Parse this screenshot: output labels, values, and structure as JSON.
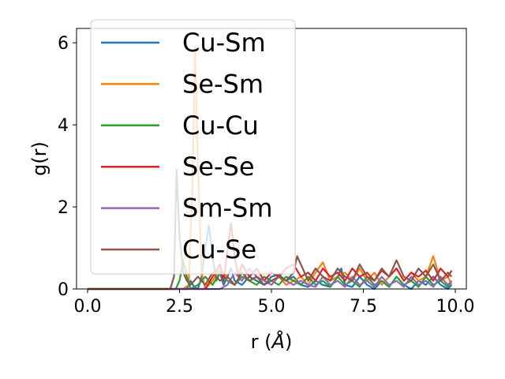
{
  "chart_data": {
    "type": "line",
    "xlabel": "r (",
    "xlabel_unit": "Å",
    "xlabel_close": ")",
    "ylabel": "g(r)",
    "xlim": [
      -0.3,
      10.3
    ],
    "ylim": [
      0,
      6.35
    ],
    "xticks": [
      0.0,
      2.5,
      5.0,
      7.5,
      10.0
    ],
    "xtick_labels": [
      "0.0",
      "2.5",
      "5.0",
      "7.5",
      "10.0"
    ],
    "yticks": [
      0,
      2,
      4,
      6
    ],
    "ytick_labels": [
      "0",
      "2",
      "4",
      "6"
    ],
    "grid": false,
    "legend_position": "upper-left",
    "series": [
      {
        "name": "Cu-Sm",
        "color": "#1f77b4",
        "points": [
          [
            0,
            0
          ],
          [
            2.3,
            0
          ],
          [
            2.7,
            0
          ],
          [
            2.8,
            0.2
          ],
          [
            2.9,
            0.05
          ],
          [
            3.0,
            0
          ],
          [
            3.1,
            0.3
          ],
          [
            3.2,
            1.0
          ],
          [
            3.3,
            1.55
          ],
          [
            3.4,
            0.8
          ],
          [
            3.5,
            0.2
          ],
          [
            3.6,
            0.4
          ],
          [
            3.7,
            0.1
          ],
          [
            3.8,
            0.3
          ],
          [
            3.9,
            0.5
          ],
          [
            4.0,
            0.2
          ],
          [
            4.2,
            0.1
          ],
          [
            4.4,
            0.3
          ],
          [
            4.6,
            0.2
          ],
          [
            4.8,
            0.1
          ],
          [
            5.0,
            0.3
          ],
          [
            5.2,
            0.35
          ],
          [
            5.4,
            0.2
          ],
          [
            5.6,
            0.3
          ],
          [
            5.8,
            0.1
          ],
          [
            6.0,
            0.05
          ],
          [
            6.2,
            0.2
          ],
          [
            6.4,
            0.1
          ],
          [
            6.6,
            0.05
          ],
          [
            6.8,
            0.3
          ],
          [
            6.9,
            0.5
          ],
          [
            7.0,
            0.1
          ],
          [
            7.2,
            0.05
          ],
          [
            7.4,
            0.3
          ],
          [
            7.6,
            0.1
          ],
          [
            7.8,
            0.0
          ],
          [
            8.0,
            0.2
          ],
          [
            8.2,
            0.05
          ],
          [
            8.4,
            0.3
          ],
          [
            8.6,
            0.1
          ],
          [
            8.8,
            0.0
          ],
          [
            9.0,
            0.2
          ],
          [
            9.2,
            0.1
          ],
          [
            9.4,
            0.3
          ],
          [
            9.6,
            0.1
          ],
          [
            9.8,
            0.0
          ],
          [
            9.9,
            0.1
          ]
        ]
      },
      {
        "name": "Se-Sm",
        "color": "#ff7f0e",
        "points": [
          [
            0,
            0
          ],
          [
            2.6,
            0
          ],
          [
            2.75,
            0.1
          ],
          [
            2.85,
            2.5
          ],
          [
            2.92,
            5.9
          ],
          [
            3.0,
            3.0
          ],
          [
            3.1,
            0.4
          ],
          [
            3.2,
            0
          ],
          [
            3.4,
            0.2
          ],
          [
            3.6,
            0.5
          ],
          [
            3.8,
            0.3
          ],
          [
            4.0,
            0.1
          ],
          [
            4.2,
            0.4
          ],
          [
            4.4,
            0.2
          ],
          [
            4.6,
            0.3
          ],
          [
            4.8,
            0.1
          ],
          [
            5.0,
            0.2
          ],
          [
            5.2,
            0.3
          ],
          [
            5.4,
            0.1
          ],
          [
            5.6,
            0.2
          ],
          [
            5.8,
            0.3
          ],
          [
            6.0,
            0.1
          ],
          [
            6.2,
            0.4
          ],
          [
            6.4,
            0.65
          ],
          [
            6.6,
            0.2
          ],
          [
            6.8,
            0.3
          ],
          [
            7.0,
            0.4
          ],
          [
            7.2,
            0.2
          ],
          [
            7.4,
            0.5
          ],
          [
            7.6,
            0.2
          ],
          [
            7.8,
            0.4
          ],
          [
            8.0,
            0.1
          ],
          [
            8.2,
            0.3
          ],
          [
            8.4,
            0.5
          ],
          [
            8.6,
            0.2
          ],
          [
            8.8,
            0.4
          ],
          [
            9.0,
            0.2
          ],
          [
            9.2,
            0.3
          ],
          [
            9.4,
            0.8
          ],
          [
            9.6,
            0.2
          ],
          [
            9.8,
            0.3
          ],
          [
            9.9,
            0.1
          ]
        ]
      },
      {
        "name": "Cu-Cu",
        "color": "#2ca02c",
        "points": [
          [
            0,
            0
          ],
          [
            2.4,
            0
          ],
          [
            2.5,
            0.2
          ],
          [
            2.6,
            0.7
          ],
          [
            2.7,
            0.3
          ],
          [
            2.8,
            0
          ],
          [
            3.0,
            0.1
          ],
          [
            3.2,
            0.3
          ],
          [
            3.4,
            0.1
          ],
          [
            3.6,
            0.4
          ],
          [
            3.8,
            0.2
          ],
          [
            4.0,
            0.1
          ],
          [
            4.2,
            0.3
          ],
          [
            4.4,
            0.2
          ],
          [
            4.6,
            0.1
          ],
          [
            4.8,
            0.3
          ],
          [
            5.0,
            0.2
          ],
          [
            5.2,
            0.1
          ],
          [
            5.4,
            0.3
          ],
          [
            5.6,
            0.2
          ],
          [
            5.8,
            0.1
          ],
          [
            6.0,
            0.3
          ],
          [
            6.2,
            0.1
          ],
          [
            6.4,
            0.2
          ],
          [
            6.6,
            0.05
          ],
          [
            6.8,
            0.3
          ],
          [
            7.0,
            0.1
          ],
          [
            7.2,
            0.2
          ],
          [
            7.4,
            0.05
          ],
          [
            7.6,
            0.3
          ],
          [
            7.8,
            0.1
          ],
          [
            8.0,
            0.2
          ],
          [
            8.2,
            0.05
          ],
          [
            8.4,
            0.3
          ],
          [
            8.6,
            0.1
          ],
          [
            8.8,
            0.2
          ],
          [
            9.0,
            0.05
          ],
          [
            9.2,
            0.3
          ],
          [
            9.4,
            0.1
          ],
          [
            9.6,
            0.2
          ],
          [
            9.8,
            0.05
          ],
          [
            9.9,
            0.2
          ]
        ]
      },
      {
        "name": "Se-Se",
        "color": "#d62728",
        "points": [
          [
            0,
            0
          ],
          [
            3.2,
            0
          ],
          [
            3.4,
            0.3
          ],
          [
            3.6,
            0.6
          ],
          [
            3.7,
            0.2
          ],
          [
            3.8,
            0.9
          ],
          [
            3.9,
            1.6
          ],
          [
            4.0,
            0.8
          ],
          [
            4.1,
            0.3
          ],
          [
            4.2,
            0.6
          ],
          [
            4.4,
            0.3
          ],
          [
            4.6,
            0.5
          ],
          [
            4.8,
            0.2
          ],
          [
            5.0,
            0.4
          ],
          [
            5.2,
            0.3
          ],
          [
            5.4,
            0.5
          ],
          [
            5.6,
            0.6
          ],
          [
            5.8,
            0.3
          ],
          [
            6.0,
            0.4
          ],
          [
            6.2,
            0.2
          ],
          [
            6.4,
            0.5
          ],
          [
            6.6,
            0.3
          ],
          [
            6.8,
            0.4
          ],
          [
            7.0,
            0.2
          ],
          [
            7.2,
            0.5
          ],
          [
            7.4,
            0.3
          ],
          [
            7.6,
            0.4
          ],
          [
            7.8,
            0.2
          ],
          [
            8.0,
            0.45
          ],
          [
            8.2,
            0.3
          ],
          [
            8.4,
            0.5
          ],
          [
            8.6,
            0.2
          ],
          [
            8.8,
            0.4
          ],
          [
            9.0,
            0.3
          ],
          [
            9.2,
            0.45
          ],
          [
            9.4,
            0.2
          ],
          [
            9.6,
            0.5
          ],
          [
            9.8,
            0.3
          ],
          [
            9.9,
            0.45
          ]
        ]
      },
      {
        "name": "Sm-Sm",
        "color": "#9467bd",
        "points": [
          [
            0,
            0
          ],
          [
            3.6,
            0
          ],
          [
            3.8,
            0.1
          ],
          [
            4.0,
            0.4
          ],
          [
            4.2,
            0.2
          ],
          [
            4.4,
            0.5
          ],
          [
            4.6,
            0.3
          ],
          [
            4.8,
            0.2
          ],
          [
            5.0,
            0.1
          ],
          [
            5.2,
            0.3
          ],
          [
            5.4,
            0.2
          ],
          [
            5.6,
            0.1
          ],
          [
            5.8,
            0.2
          ],
          [
            6.0,
            0.1
          ],
          [
            6.2,
            0.05
          ],
          [
            6.4,
            0.3
          ],
          [
            6.6,
            0.1
          ],
          [
            6.8,
            0.2
          ],
          [
            7.0,
            0.05
          ],
          [
            7.2,
            0.3
          ],
          [
            7.4,
            0.1
          ],
          [
            7.6,
            0.2
          ],
          [
            7.8,
            0.05
          ],
          [
            8.0,
            0.3
          ],
          [
            8.2,
            0.1
          ],
          [
            8.4,
            0.2
          ],
          [
            8.6,
            0.05
          ],
          [
            8.8,
            0.3
          ],
          [
            9.0,
            0.1
          ],
          [
            9.2,
            0.2
          ],
          [
            9.4,
            0.05
          ],
          [
            9.6,
            0.3
          ],
          [
            9.8,
            0.1
          ],
          [
            9.9,
            0.2
          ]
        ]
      },
      {
        "name": "Cu-Se",
        "color": "#8c564b",
        "points": [
          [
            0,
            0
          ],
          [
            2.25,
            0
          ],
          [
            2.35,
            0.3
          ],
          [
            2.42,
            2.9
          ],
          [
            2.5,
            1.3
          ],
          [
            2.6,
            0.4
          ],
          [
            2.7,
            0.2
          ],
          [
            2.8,
            0.1
          ],
          [
            3.0,
            0.3
          ],
          [
            3.2,
            0.1
          ],
          [
            3.4,
            0.4
          ],
          [
            3.6,
            0.2
          ],
          [
            3.8,
            0.3
          ],
          [
            4.0,
            0.1
          ],
          [
            4.2,
            0.4
          ],
          [
            4.4,
            0.2
          ],
          [
            4.6,
            0.3
          ],
          [
            4.8,
            0.1
          ],
          [
            5.0,
            0.2
          ],
          [
            5.2,
            0.3
          ],
          [
            5.4,
            0.2
          ],
          [
            5.6,
            0.4
          ],
          [
            5.7,
            0.8
          ],
          [
            5.8,
            0.6
          ],
          [
            6.0,
            0.2
          ],
          [
            6.2,
            0.5
          ],
          [
            6.4,
            0.3
          ],
          [
            6.6,
            0.2
          ],
          [
            6.8,
            0.5
          ],
          [
            7.0,
            0.3
          ],
          [
            7.2,
            0.2
          ],
          [
            7.4,
            0.6
          ],
          [
            7.6,
            0.3
          ],
          [
            7.8,
            0.2
          ],
          [
            8.0,
            0.5
          ],
          [
            8.2,
            0.3
          ],
          [
            8.4,
            0.7
          ],
          [
            8.6,
            0.3
          ],
          [
            8.8,
            0.2
          ],
          [
            9.0,
            0.5
          ],
          [
            9.2,
            0.3
          ],
          [
            9.4,
            0.6
          ],
          [
            9.6,
            0.2
          ],
          [
            9.8,
            0.4
          ],
          [
            9.9,
            0.3
          ]
        ]
      }
    ]
  }
}
